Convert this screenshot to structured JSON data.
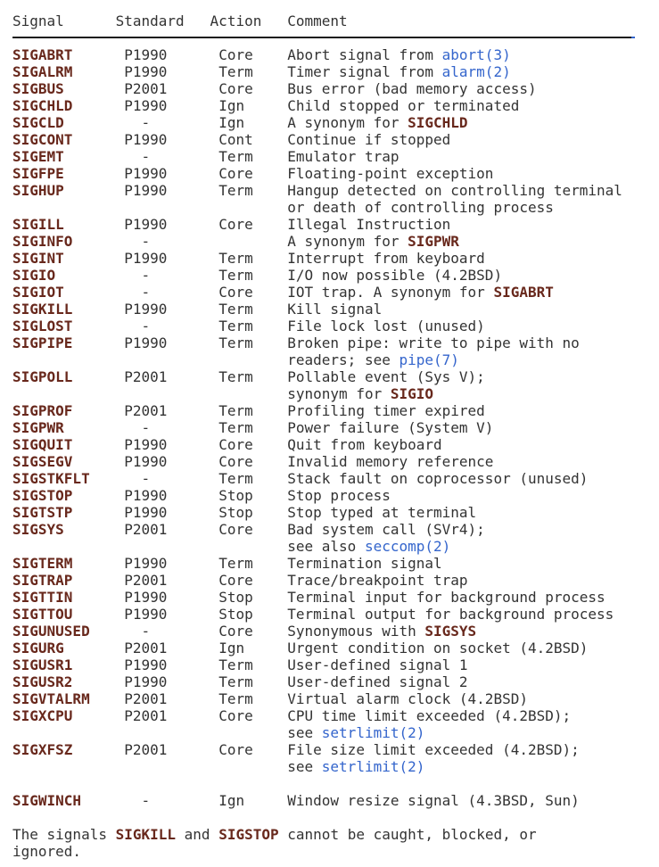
{
  "colors": {
    "text": "#333333",
    "signal_bold": "#68281c",
    "link": "#3465cc",
    "rule": "#1a1a1a",
    "background": "#ffffff"
  },
  "table": {
    "headers": {
      "signal": "Signal",
      "standard": "Standard",
      "action": "Action",
      "comment": "Comment"
    },
    "rows": [
      {
        "signal": "SIGABRT",
        "standard": "P1990",
        "action": "Core",
        "comment": [
          [
            {
              "t": "Abort signal from "
            },
            {
              "t": "abort(3)",
              "s": "link"
            }
          ]
        ]
      },
      {
        "signal": "SIGALRM",
        "standard": "P1990",
        "action": "Term",
        "comment": [
          [
            {
              "t": "Timer signal from "
            },
            {
              "t": "alarm(2)",
              "s": "link"
            }
          ]
        ]
      },
      {
        "signal": "SIGBUS",
        "standard": "P2001",
        "action": "Core",
        "comment": [
          [
            {
              "t": "Bus error (bad memory access)"
            }
          ]
        ]
      },
      {
        "signal": "SIGCHLD",
        "standard": "P1990",
        "action": "Ign",
        "comment": [
          [
            {
              "t": "Child stopped or terminated"
            }
          ]
        ]
      },
      {
        "signal": "SIGCLD",
        "standard": "-",
        "action": "Ign",
        "comment": [
          [
            {
              "t": "A synonym for "
            },
            {
              "t": "SIGCHLD",
              "s": "bold"
            }
          ]
        ]
      },
      {
        "signal": "SIGCONT",
        "standard": "P1990",
        "action": "Cont",
        "comment": [
          [
            {
              "t": "Continue if stopped"
            }
          ]
        ]
      },
      {
        "signal": "SIGEMT",
        "standard": "-",
        "action": "Term",
        "comment": [
          [
            {
              "t": "Emulator trap"
            }
          ]
        ]
      },
      {
        "signal": "SIGFPE",
        "standard": "P1990",
        "action": "Core",
        "comment": [
          [
            {
              "t": "Floating-point exception"
            }
          ]
        ]
      },
      {
        "signal": "SIGHUP",
        "standard": "P1990",
        "action": "Term",
        "comment": [
          [
            {
              "t": "Hangup detected on controlling terminal"
            }
          ],
          [
            {
              "t": "or death of controlling process"
            }
          ]
        ]
      },
      {
        "signal": "SIGILL",
        "standard": "P1990",
        "action": "Core",
        "comment": [
          [
            {
              "t": "Illegal Instruction"
            }
          ]
        ]
      },
      {
        "signal": "SIGINFO",
        "standard": "-",
        "action": "",
        "comment": [
          [
            {
              "t": "A synonym for "
            },
            {
              "t": "SIGPWR",
              "s": "bold"
            }
          ]
        ]
      },
      {
        "signal": "SIGINT",
        "standard": "P1990",
        "action": "Term",
        "comment": [
          [
            {
              "t": "Interrupt from keyboard"
            }
          ]
        ]
      },
      {
        "signal": "SIGIO",
        "standard": "-",
        "action": "Term",
        "comment": [
          [
            {
              "t": "I/O now possible (4.2BSD)"
            }
          ]
        ]
      },
      {
        "signal": "SIGIOT",
        "standard": "-",
        "action": "Core",
        "comment": [
          [
            {
              "t": "IOT trap. A synonym for "
            },
            {
              "t": "SIGABRT",
              "s": "bold"
            }
          ]
        ]
      },
      {
        "signal": "SIGKILL",
        "standard": "P1990",
        "action": "Term",
        "comment": [
          [
            {
              "t": "Kill signal"
            }
          ]
        ]
      },
      {
        "signal": "SIGLOST",
        "standard": "-",
        "action": "Term",
        "comment": [
          [
            {
              "t": "File lock lost (unused)"
            }
          ]
        ]
      },
      {
        "signal": "SIGPIPE",
        "standard": "P1990",
        "action": "Term",
        "comment": [
          [
            {
              "t": "Broken pipe: write to pipe with no"
            }
          ],
          [
            {
              "t": "readers; see "
            },
            {
              "t": "pipe(7)",
              "s": "link"
            }
          ]
        ]
      },
      {
        "signal": "SIGPOLL",
        "standard": "P2001",
        "action": "Term",
        "comment": [
          [
            {
              "t": "Pollable event (Sys V);"
            }
          ],
          [
            {
              "t": "synonym for "
            },
            {
              "t": "SIGIO",
              "s": "bold"
            }
          ]
        ]
      },
      {
        "signal": "SIGPROF",
        "standard": "P2001",
        "action": "Term",
        "comment": [
          [
            {
              "t": "Profiling timer expired"
            }
          ]
        ]
      },
      {
        "signal": "SIGPWR",
        "standard": "-",
        "action": "Term",
        "comment": [
          [
            {
              "t": "Power failure (System V)"
            }
          ]
        ]
      },
      {
        "signal": "SIGQUIT",
        "standard": "P1990",
        "action": "Core",
        "comment": [
          [
            {
              "t": "Quit from keyboard"
            }
          ]
        ]
      },
      {
        "signal": "SIGSEGV",
        "standard": "P1990",
        "action": "Core",
        "comment": [
          [
            {
              "t": "Invalid memory reference"
            }
          ]
        ]
      },
      {
        "signal": "SIGSTKFLT",
        "standard": "-",
        "action": "Term",
        "comment": [
          [
            {
              "t": "Stack fault on coprocessor (unused)"
            }
          ]
        ]
      },
      {
        "signal": "SIGSTOP",
        "standard": "P1990",
        "action": "Stop",
        "comment": [
          [
            {
              "t": "Stop process"
            }
          ]
        ]
      },
      {
        "signal": "SIGTSTP",
        "standard": "P1990",
        "action": "Stop",
        "comment": [
          [
            {
              "t": "Stop typed at terminal"
            }
          ]
        ]
      },
      {
        "signal": "SIGSYS",
        "standard": "P2001",
        "action": "Core",
        "comment": [
          [
            {
              "t": "Bad system call (SVr4);"
            }
          ],
          [
            {
              "t": "see also "
            },
            {
              "t": "seccomp(2)",
              "s": "link"
            }
          ]
        ]
      },
      {
        "signal": "SIGTERM",
        "standard": "P1990",
        "action": "Term",
        "comment": [
          [
            {
              "t": "Termination signal"
            }
          ]
        ]
      },
      {
        "signal": "SIGTRAP",
        "standard": "P2001",
        "action": "Core",
        "comment": [
          [
            {
              "t": "Trace/breakpoint trap"
            }
          ]
        ]
      },
      {
        "signal": "SIGTTIN",
        "standard": "P1990",
        "action": "Stop",
        "comment": [
          [
            {
              "t": "Terminal input for background process"
            }
          ]
        ]
      },
      {
        "signal": "SIGTTOU",
        "standard": "P1990",
        "action": "Stop",
        "comment": [
          [
            {
              "t": "Terminal output for background process"
            }
          ]
        ]
      },
      {
        "signal": "SIGUNUSED",
        "standard": "-",
        "action": "Core",
        "comment": [
          [
            {
              "t": "Synonymous with "
            },
            {
              "t": "SIGSYS",
              "s": "bold"
            }
          ]
        ]
      },
      {
        "signal": "SIGURG",
        "standard": "P2001",
        "action": "Ign",
        "comment": [
          [
            {
              "t": "Urgent condition on socket (4.2BSD)"
            }
          ]
        ]
      },
      {
        "signal": "SIGUSR1",
        "standard": "P1990",
        "action": "Term",
        "comment": [
          [
            {
              "t": "User-defined signal 1"
            }
          ]
        ]
      },
      {
        "signal": "SIGUSR2",
        "standard": "P1990",
        "action": "Term",
        "comment": [
          [
            {
              "t": "User-defined signal 2"
            }
          ]
        ]
      },
      {
        "signal": "SIGVTALRM",
        "standard": "P2001",
        "action": "Term",
        "comment": [
          [
            {
              "t": "Virtual alarm clock (4.2BSD)"
            }
          ]
        ]
      },
      {
        "signal": "SIGXCPU",
        "standard": "P2001",
        "action": "Core",
        "comment": [
          [
            {
              "t": "CPU time limit exceeded (4.2BSD);"
            }
          ],
          [
            {
              "t": "see "
            },
            {
              "t": "setrlimit(2)",
              "s": "link"
            }
          ]
        ]
      },
      {
        "signal": "SIGXFSZ",
        "standard": "P2001",
        "action": "Core",
        "comment": [
          [
            {
              "t": "File size limit exceeded (4.2BSD);"
            }
          ],
          [
            {
              "t": "see "
            },
            {
              "t": "setrlimit(2)",
              "s": "link"
            }
          ]
        ]
      },
      {
        "signal": "SIGWINCH",
        "standard": "-",
        "action": "Ign",
        "gap_before": true,
        "comment": [
          [
            {
              "t": "Window resize signal (4.3BSD, Sun)"
            }
          ]
        ]
      }
    ]
  },
  "footer": {
    "lines": [
      [
        {
          "t": "The signals "
        },
        {
          "t": "SIGKILL",
          "s": "bold"
        },
        {
          "t": " and "
        },
        {
          "t": "SIGSTOP",
          "s": "bold"
        },
        {
          "t": " cannot be caught, blocked, or"
        }
      ],
      [
        {
          "t": "ignored."
        }
      ]
    ]
  }
}
